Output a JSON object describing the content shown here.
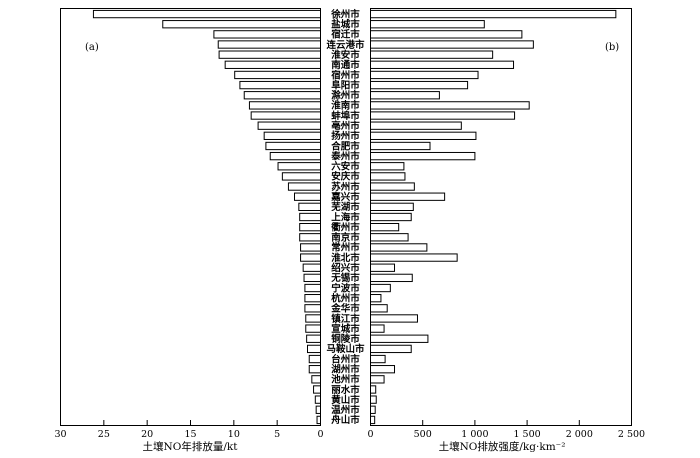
{
  "chart_data": [
    {
      "panel": "(a)",
      "type": "bar",
      "orientation": "horizontal",
      "xlabel": "土壤NO年排放量/kt",
      "xlim": [
        0,
        30
      ],
      "xticks": [
        30,
        25,
        20,
        15,
        10,
        5,
        0
      ],
      "xtick_labels": [
        "30",
        "25",
        "20",
        "15",
        "10",
        "5",
        "0"
      ],
      "reversed": true,
      "categories": [
        "徐州市",
        "盐城市",
        "宿迁市",
        "连云港市",
        "淮安市",
        "南通市",
        "宿州市",
        "阜阳市",
        "滁州市",
        "淮南市",
        "蚌埠市",
        "亳州市",
        "扬州市",
        "合肥市",
        "泰州市",
        "六安市",
        "安庆市",
        "苏州市",
        "嘉兴市",
        "芜湖市",
        "上海市",
        "衢州市",
        "南京市",
        "常州市",
        "淮北市",
        "绍兴市",
        "无锡市",
        "宁波市",
        "杭州市",
        "金华市",
        "镇江市",
        "宣城市",
        "铜陵市",
        "马鞍山市",
        "台州市",
        "湖州市",
        "池州市",
        "丽水市",
        "黄山市",
        "温州市",
        "舟山市"
      ],
      "values": [
        26.2,
        18.2,
        12.3,
        11.8,
        11.7,
        11.0,
        9.9,
        9.3,
        8.8,
        8.2,
        8.0,
        7.2,
        6.5,
        6.3,
        5.8,
        4.9,
        4.4,
        3.7,
        3.0,
        2.5,
        2.4,
        2.4,
        2.4,
        2.3,
        2.3,
        2.0,
        1.9,
        1.8,
        1.8,
        1.8,
        1.7,
        1.7,
        1.6,
        1.5,
        1.3,
        1.3,
        1.0,
        0.8,
        0.6,
        0.5,
        0.4
      ]
    },
    {
      "panel": "(b)",
      "type": "bar",
      "orientation": "horizontal",
      "xlabel": "土壤NO排放强度/kg·km⁻²",
      "xlim": [
        0,
        2500
      ],
      "xticks": [
        0,
        500,
        1000,
        1500,
        2000,
        2500
      ],
      "xtick_labels": [
        "0",
        "500",
        "1 000",
        "1 500",
        "2 000",
        "2 500"
      ],
      "categories": [
        "徐州市",
        "盐城市",
        "宿迁市",
        "连云港市",
        "淮安市",
        "南通市",
        "宿州市",
        "阜阳市",
        "滁州市",
        "淮南市",
        "蚌埠市",
        "亳州市",
        "扬州市",
        "合肥市",
        "泰州市",
        "六安市",
        "安庆市",
        "苏州市",
        "嘉兴市",
        "芜湖市",
        "上海市",
        "衢州市",
        "南京市",
        "常州市",
        "淮北市",
        "绍兴市",
        "无锡市",
        "宁波市",
        "杭州市",
        "金华市",
        "镇江市",
        "宣城市",
        "铜陵市",
        "马鞍山市",
        "台州市",
        "湖州市",
        "池州市",
        "丽水市",
        "黄山市",
        "温州市",
        "舟山市"
      ],
      "values": [
        2350,
        1090,
        1450,
        1560,
        1170,
        1370,
        1030,
        930,
        660,
        1520,
        1380,
        870,
        1010,
        570,
        1000,
        320,
        330,
        420,
        710,
        410,
        390,
        270,
        360,
        540,
        830,
        230,
        400,
        190,
        100,
        160,
        450,
        130,
        550,
        390,
        140,
        230,
        130,
        50,
        55,
        45,
        40
      ]
    }
  ]
}
